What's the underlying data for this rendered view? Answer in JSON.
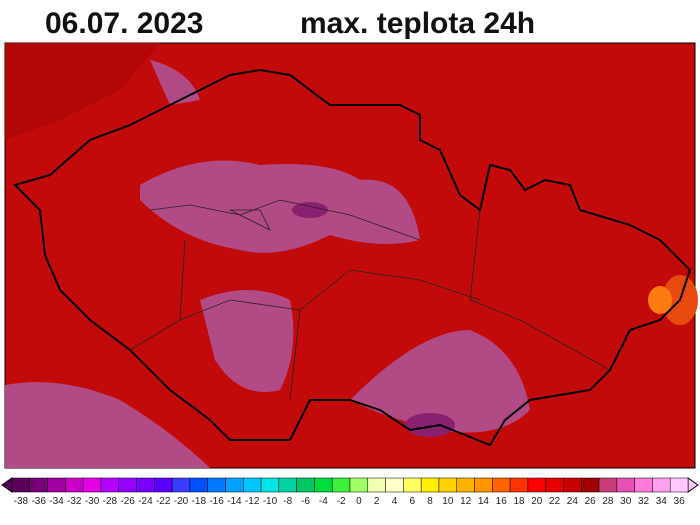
{
  "header": {
    "date": "06.07.  2023",
    "title": "max. teplota 24h"
  },
  "legend": {
    "labels": [
      -38,
      -36,
      -34,
      -32,
      -30,
      -28,
      -26,
      -24,
      -22,
      -20,
      -18,
      -16,
      -14,
      -12,
      -10,
      -8,
      -6,
      -4,
      -2,
      0,
      2,
      4,
      6,
      8,
      10,
      12,
      14,
      16,
      18,
      20,
      22,
      24,
      26,
      28,
      30,
      32,
      34,
      36
    ],
    "colors": [
      "#5a005a",
      "#780078",
      "#a000a0",
      "#c800c8",
      "#e600e6",
      "#b400ff",
      "#9600ff",
      "#7800ff",
      "#5a00ff",
      "#3c3cff",
      "#0050ff",
      "#0078ff",
      "#00a0ff",
      "#00c8ff",
      "#00e6e6",
      "#00d2a0",
      "#00c864",
      "#00dc3c",
      "#3cf03c",
      "#a0ff64",
      "#f0ffb4",
      "#ffffc8",
      "#ffff64",
      "#fff000",
      "#ffd200",
      "#ffb400",
      "#ff9600",
      "#ff6400",
      "#ff3200",
      "#ff0000",
      "#e60000",
      "#c80000",
      "#a00000",
      "#c83c78",
      "#e650b4",
      "#ff78dc",
      "#ffa0f0",
      "#ffc8ff"
    ]
  }
}
